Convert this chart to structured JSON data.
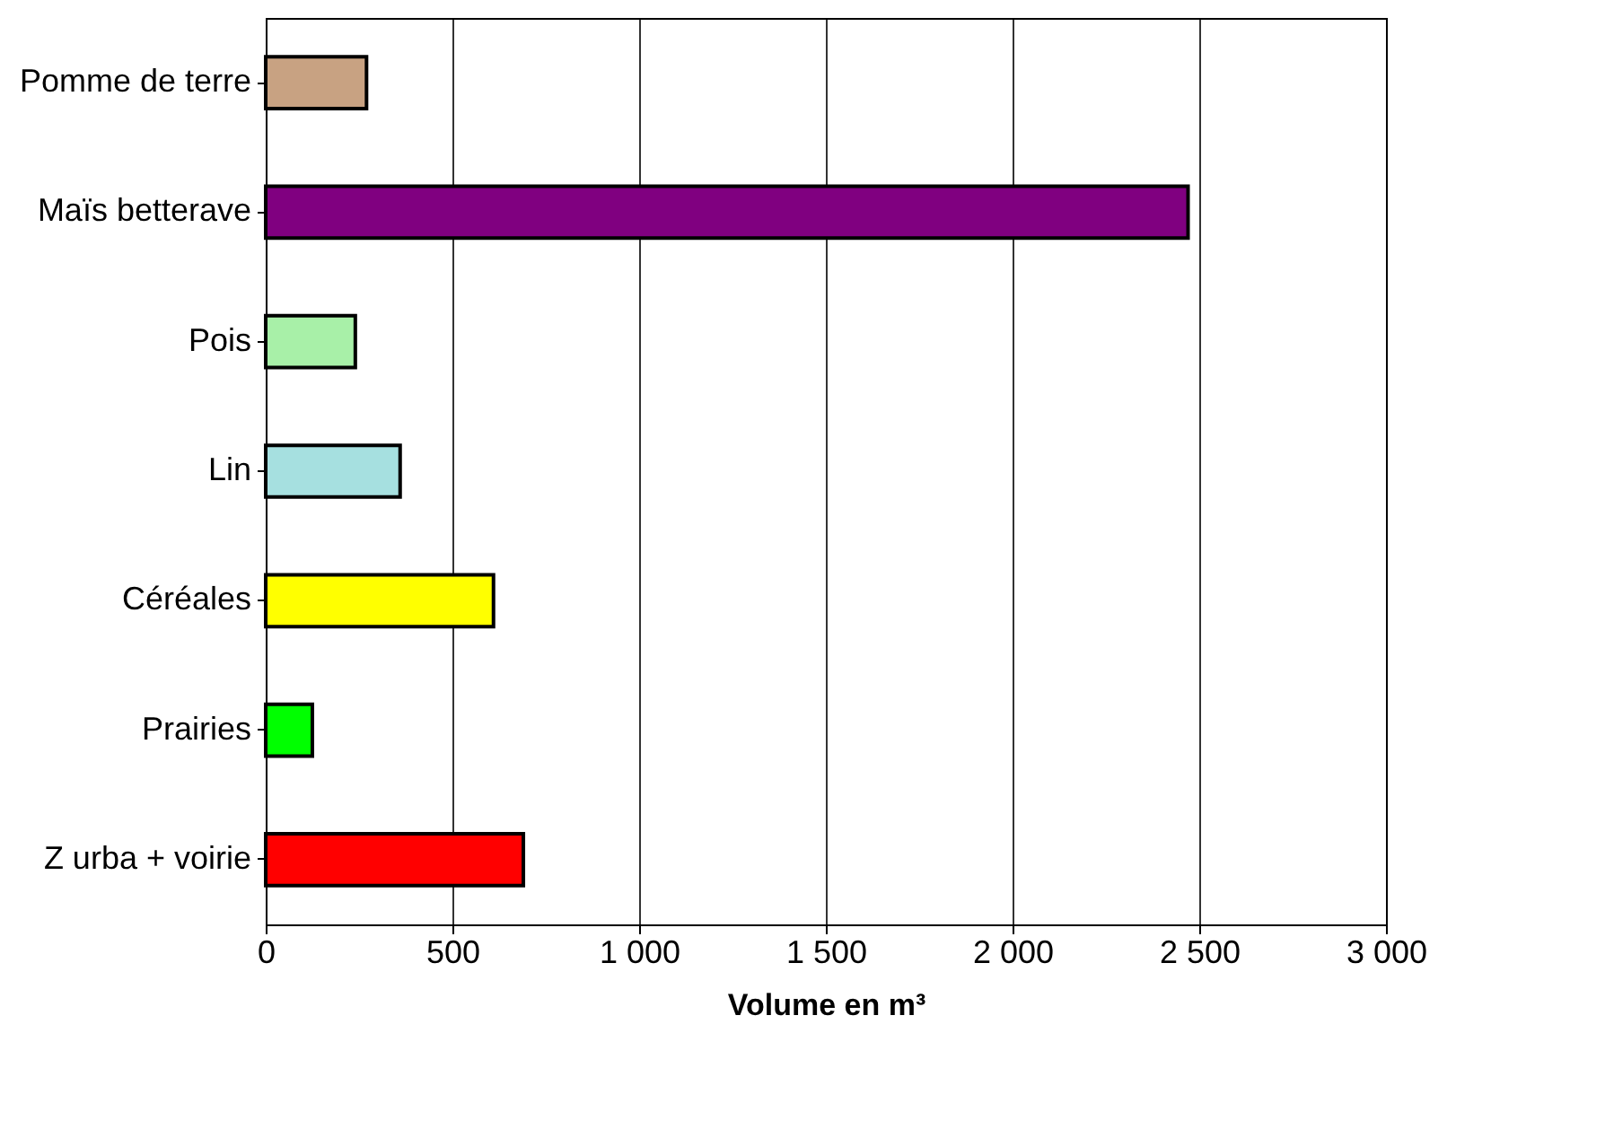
{
  "chart_data": {
    "type": "bar",
    "orientation": "horizontal",
    "xlabel": "Volume en m³",
    "categories": [
      "Pomme de terre",
      "Maïs betterave",
      "Pois",
      "Lin",
      "Céréales",
      "Prairies",
      "Z urba + voirie"
    ],
    "values": [
      270,
      2470,
      240,
      360,
      610,
      125,
      690
    ],
    "colors": [
      "#c8a282",
      "#800080",
      "#a8f0a8",
      "#a6e0e0",
      "#ffff00",
      "#00ff00",
      "#ff0000"
    ],
    "xlim": [
      0,
      3000
    ],
    "xticks": [
      0,
      500,
      {
        "value": 1000,
        "label": "1 000"
      },
      {
        "value": 1500,
        "label": "1 500"
      },
      {
        "value": 2000,
        "label": "2 000"
      },
      {
        "value": 2500,
        "label": "2 500"
      },
      {
        "value": 3000,
        "label": "3 000"
      }
    ],
    "grid": "x"
  }
}
